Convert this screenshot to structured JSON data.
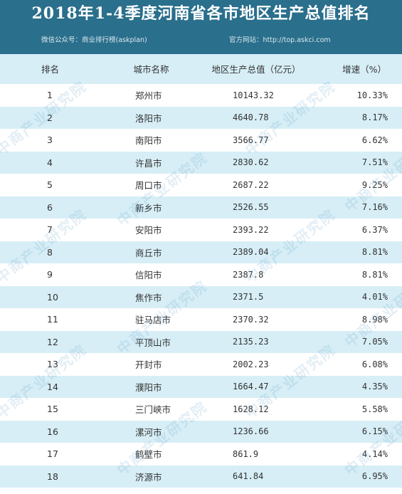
{
  "header": {
    "title": "2018年1-4季度河南省各市地区生产总值排名",
    "wechat": "微信公众号：商业排行榜(askplan)",
    "website": "官方网站：http://top.askci.com",
    "background_color": "#2a6f8c"
  },
  "table": {
    "columns": [
      "排名",
      "城市名称",
      "地区生产总值（亿元）",
      "增速（%）"
    ],
    "rows": [
      {
        "rank": "1",
        "city": "郑州市",
        "gdp": "10143.32",
        "growth": "10.33%"
      },
      {
        "rank": "2",
        "city": "洛阳市",
        "gdp": "4640.78",
        "growth": "8.17%"
      },
      {
        "rank": "3",
        "city": "南阳市",
        "gdp": "3566.77",
        "growth": "6.62%"
      },
      {
        "rank": "4",
        "city": "许昌市",
        "gdp": "2830.62",
        "growth": "7.51%"
      },
      {
        "rank": "5",
        "city": "周口市",
        "gdp": "2687.22",
        "growth": "9.25%"
      },
      {
        "rank": "6",
        "city": "新乡市",
        "gdp": "2526.55",
        "growth": "7.16%"
      },
      {
        "rank": "7",
        "city": "安阳市",
        "gdp": "2393.22",
        "growth": "6.37%"
      },
      {
        "rank": "8",
        "city": "商丘市",
        "gdp": "2389.04",
        "growth": "8.81%"
      },
      {
        "rank": "9",
        "city": "信阳市",
        "gdp": "2387.8",
        "growth": "8.81%"
      },
      {
        "rank": "10",
        "city": "焦作市",
        "gdp": "2371.5",
        "growth": "4.01%"
      },
      {
        "rank": "11",
        "city": "驻马店市",
        "gdp": "2370.32",
        "growth": "8.98%"
      },
      {
        "rank": "12",
        "city": "平顶山市",
        "gdp": "2135.23",
        "growth": "7.05%"
      },
      {
        "rank": "13",
        "city": "开封市",
        "gdp": "2002.23",
        "growth": "6.08%"
      },
      {
        "rank": "14",
        "city": "濮阳市",
        "gdp": "1664.47",
        "growth": "4.35%"
      },
      {
        "rank": "15",
        "city": "三门峡市",
        "gdp": "1628.12",
        "growth": "5.58%"
      },
      {
        "rank": "16",
        "city": "漯河市",
        "gdp": "1236.66",
        "growth": "6.15%"
      },
      {
        "rank": "17",
        "city": "鹤壁市",
        "gdp": "861.9",
        "growth": "4.14%"
      },
      {
        "rank": "18",
        "city": "济源市",
        "gdp": "641.84",
        "growth": "6.95%"
      }
    ],
    "stripe_color": "#d7eef6"
  },
  "watermark": {
    "text": "中商产业研究院"
  }
}
